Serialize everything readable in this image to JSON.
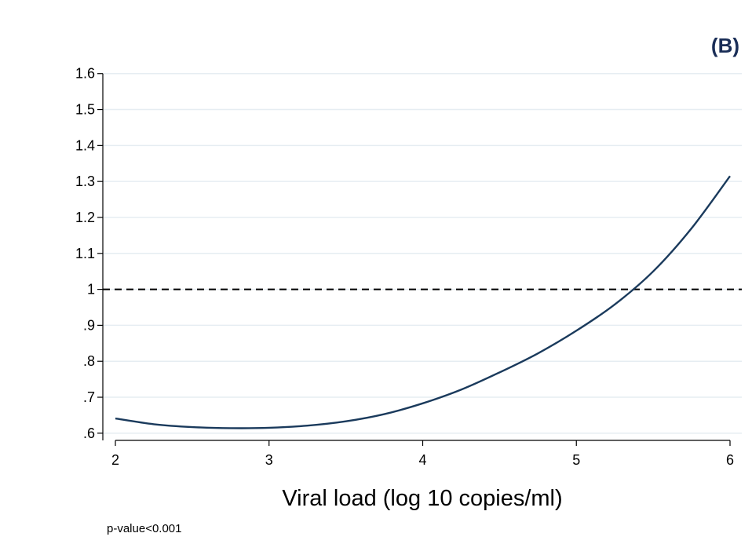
{
  "chart_data": {
    "type": "line",
    "title": "",
    "panel_label": "(B)",
    "xlabel": "Viral load (log 10 copies/ml)",
    "ylabel": "",
    "xlim": [
      2,
      6
    ],
    "ylim": [
      0.58,
      1.63
    ],
    "x_ticks": [
      2,
      3,
      4,
      5,
      6
    ],
    "x_tick_labels": [
      "2",
      "3",
      "4",
      "5",
      "6"
    ],
    "y_ticks": [
      0.6,
      0.7,
      0.8,
      0.9,
      1.0,
      1.1,
      1.2,
      1.3,
      1.4,
      1.5,
      1.6
    ],
    "y_tick_labels": [
      ".6",
      ".7",
      ".8",
      ".9",
      "1",
      "1.1",
      "1.2",
      "1.3",
      "1.4",
      "1.5",
      "1.6"
    ],
    "grid": true,
    "reference_line": {
      "y": 1.0,
      "style": "dashed"
    },
    "series": [
      {
        "x": [
          2.0,
          2.25,
          2.5,
          2.75,
          3.0,
          3.25,
          3.5,
          3.75,
          4.0,
          4.25,
          4.5,
          4.75,
          5.0,
          5.25,
          5.5,
          5.75,
          6.0
        ],
        "values": [
          0.641,
          0.625,
          0.617,
          0.614,
          0.615,
          0.621,
          0.633,
          0.653,
          0.683,
          0.721,
          0.769,
          0.822,
          0.885,
          0.958,
          1.05,
          1.17,
          1.315
        ],
        "color": "#1a3a5c"
      }
    ],
    "annotation": "p-value<0.001"
  }
}
